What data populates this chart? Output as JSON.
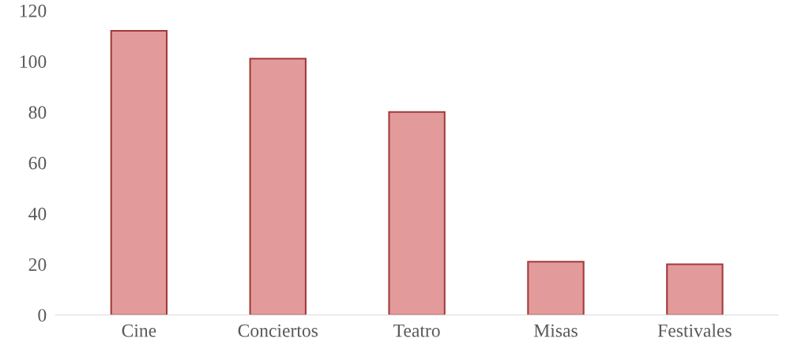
{
  "chart_data": {
    "type": "bar",
    "categories": [
      "Cine",
      "Conciertos",
      "Teatro",
      "Misas",
      "Festivales"
    ],
    "values": [
      112,
      101,
      80,
      21,
      20
    ],
    "color": "#e39a9a",
    "ylim": [
      0,
      120
    ],
    "yticks": [
      0,
      20,
      40,
      60,
      80,
      100,
      120
    ],
    "grid": false
  }
}
